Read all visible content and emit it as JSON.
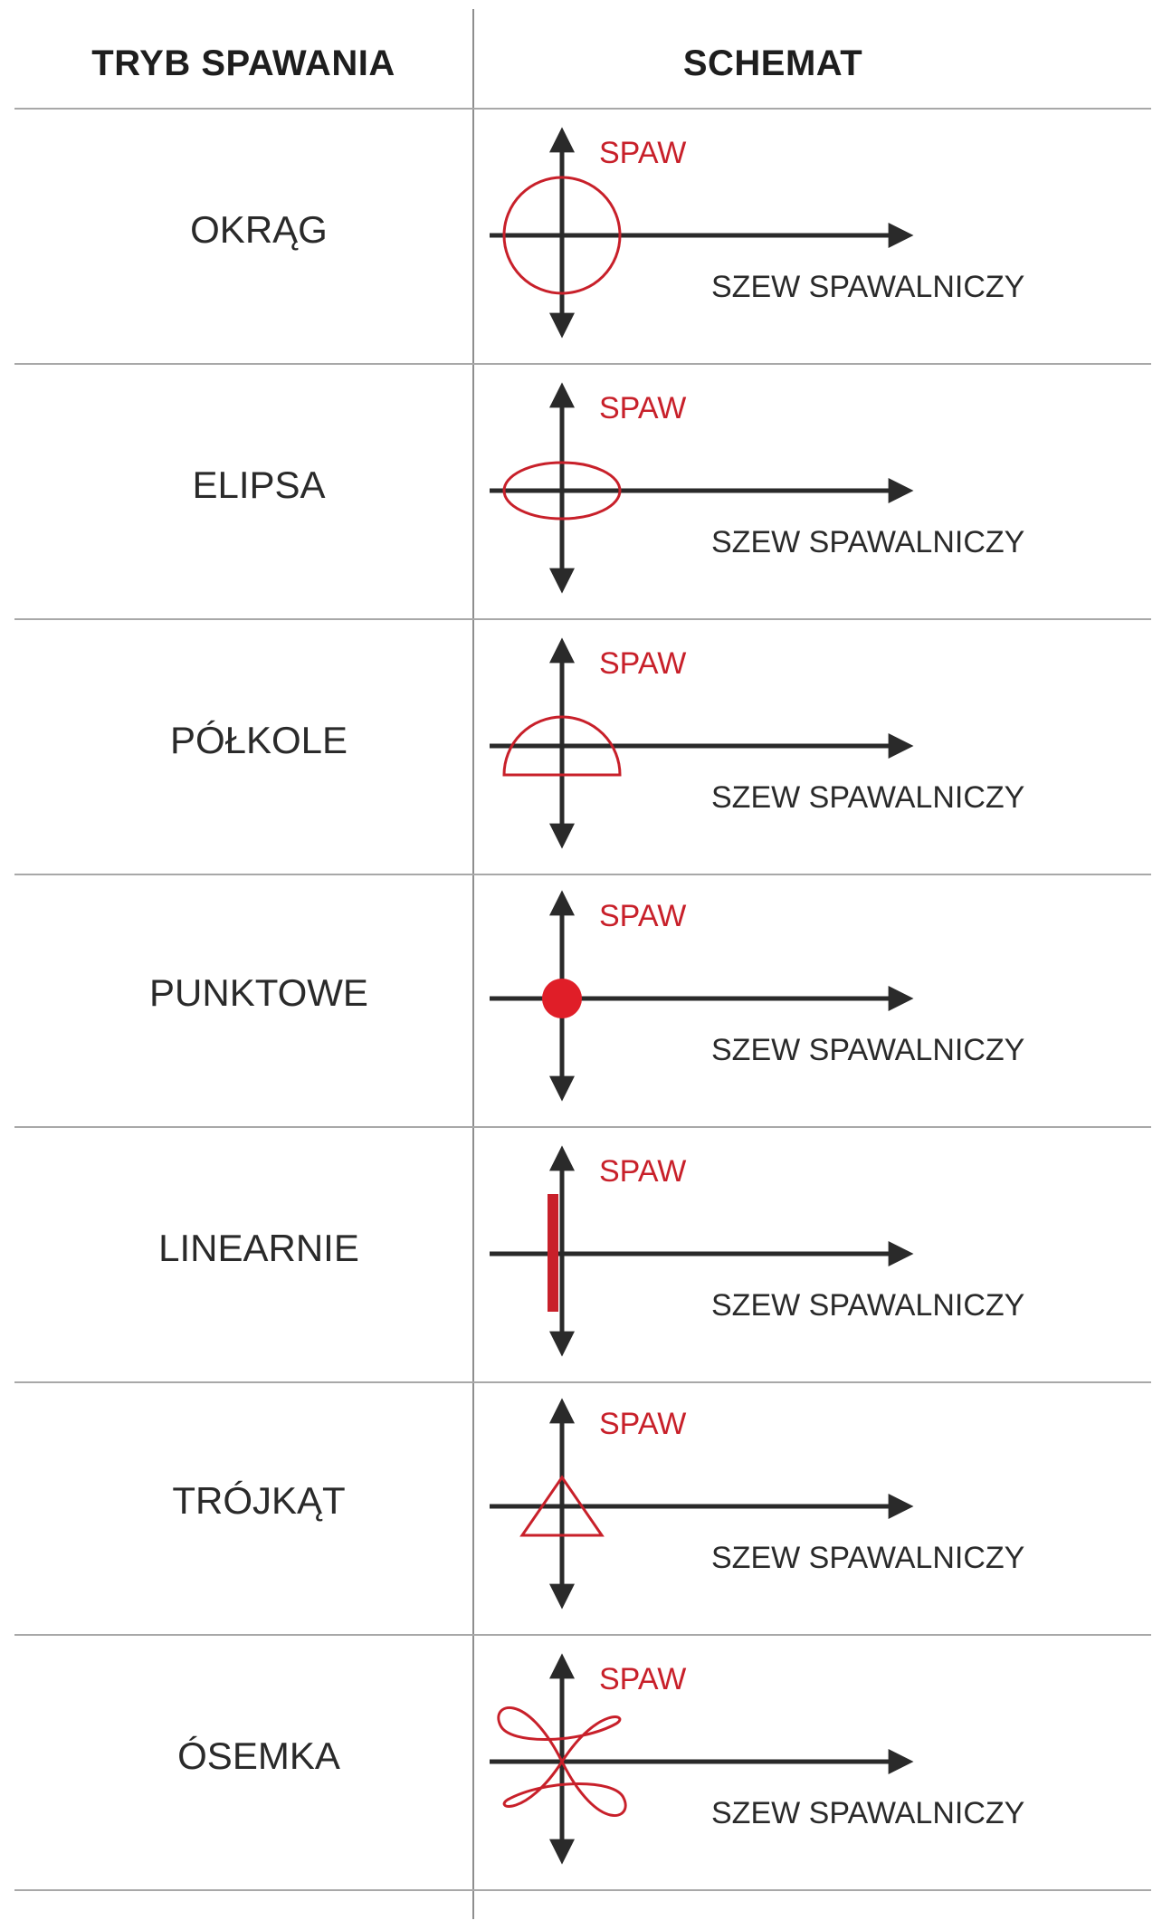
{
  "header": {
    "mode_title": "TRYB SPAWANIA",
    "schema_title": "SCHEMAT"
  },
  "colors": {
    "axis": "#2a2a2a",
    "weld": "#c8202a",
    "divider": "#a8a8a8"
  },
  "rows": [
    {
      "mode": "OKRĄG",
      "shape": "circle",
      "spaw_label": "SPAW",
      "seam_label": "SZEW SPAWALNICZY"
    },
    {
      "mode": "ELIPSA",
      "shape": "ellipse",
      "spaw_label": "SPAW",
      "seam_label": "SZEW SPAWALNICZY"
    },
    {
      "mode": "PÓŁKOLE",
      "shape": "semicircle",
      "spaw_label": "SPAW",
      "seam_label": "SZEW SPAWALNICZY"
    },
    {
      "mode": "PUNKTOWE",
      "shape": "dot",
      "spaw_label": "SPAW",
      "seam_label": "SZEW SPAWALNICZY"
    },
    {
      "mode": "LINEARNIE",
      "shape": "line",
      "spaw_label": "SPAW",
      "seam_label": "SZEW SPAWALNICZY"
    },
    {
      "mode": "TRÓJKĄT",
      "shape": "triangle",
      "spaw_label": "SPAW",
      "seam_label": "SZEW SPAWALNICZY"
    },
    {
      "mode": "ÓSEMKA",
      "shape": "figure-eight",
      "spaw_label": "SPAW",
      "seam_label": "SZEW SPAWALNICZY"
    }
  ]
}
